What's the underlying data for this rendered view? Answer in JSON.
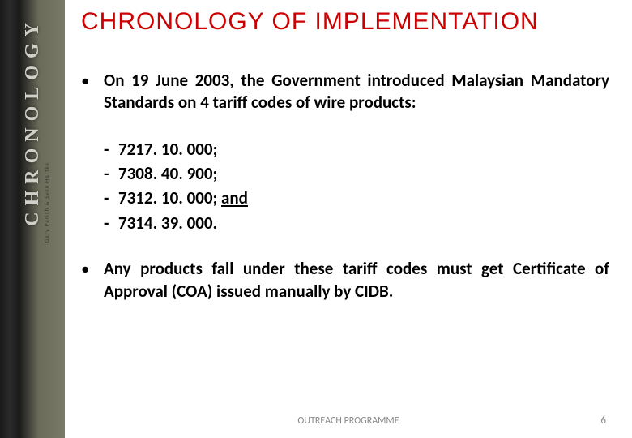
{
  "spine": {
    "main_text": "CHRONOLOGY",
    "sub_text": "Gary Parish & Sven Hartke"
  },
  "title": "CHRONOLOGY OF IMPLEMENTATION",
  "bullets": {
    "intro_prefix": "On ",
    "intro_date": "19 June 2003",
    "intro_rest": ", the Government introduced Malaysian Mandatory Standards on ",
    "intro_count": "4 tariff codes",
    "intro_suffix": " of wire products:",
    "codes": [
      "7217. 10. 000;",
      "7308. 40. 900;",
      "7312. 10. 000; ",
      "7314. 39. 000."
    ],
    "code_and": "and",
    "outro": "Any products fall under these tariff codes must get Certificate of Approval (COA) issued manually by CIDB."
  },
  "footer": {
    "program": "OUTREACH PROGRAMME",
    "page": "6"
  },
  "colors": {
    "title_color": "#cc0000",
    "body_color": "#000000",
    "footer_color": "#888888",
    "spine_text_color": "#d0d0c8"
  }
}
